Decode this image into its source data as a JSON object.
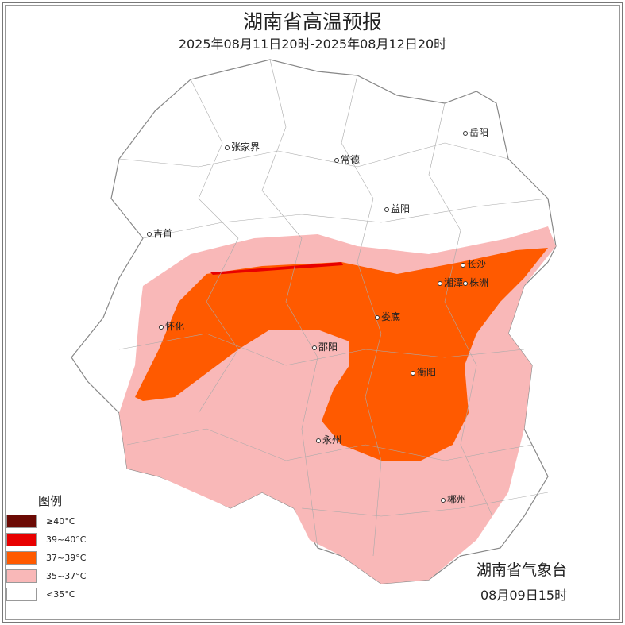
{
  "title": "湖南省高温预报",
  "subtitle": "2025年08月11日20时-2025年08月12日20时",
  "cities": [
    {
      "name": "岳阳"
    },
    {
      "name": "张家界"
    },
    {
      "name": "常德"
    },
    {
      "name": "益阳"
    },
    {
      "name": "吉首"
    },
    {
      "name": "长沙"
    },
    {
      "name": "湘潭"
    },
    {
      "name": "株洲"
    },
    {
      "name": "怀化"
    },
    {
      "name": "娄底"
    },
    {
      "name": "邵阳"
    },
    {
      "name": "衡阳"
    },
    {
      "name": "永州"
    },
    {
      "name": "郴州"
    }
  ],
  "legend": {
    "title": "图例",
    "items": [
      {
        "label": "≥40°C",
        "color": "#6b0a04"
      },
      {
        "label": "39~40°C",
        "color": "#e80000"
      },
      {
        "label": "37~39°C",
        "color": "#ff5a00"
      },
      {
        "label": "35~37°C",
        "color": "#f9b8b8"
      },
      {
        "label": "<35°C",
        "color": "#ffffff"
      }
    ]
  },
  "agency": "湖南省气象台",
  "issued": "08月09日15时"
}
